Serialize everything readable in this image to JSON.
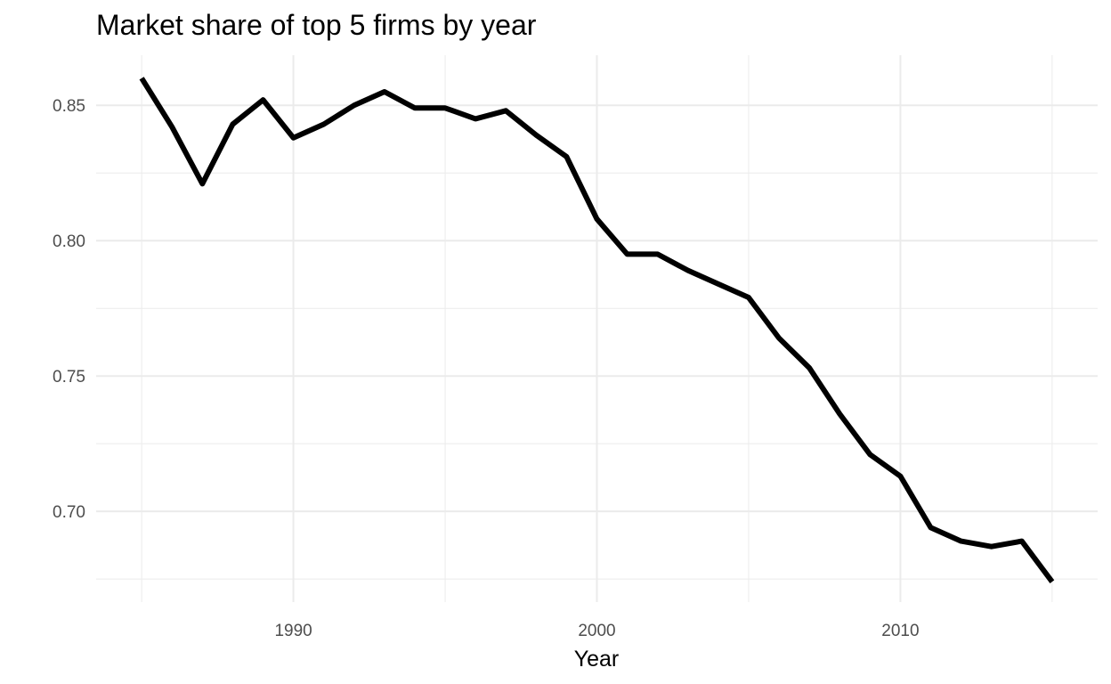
{
  "chart_data": {
    "type": "line",
    "title": "Market share of top 5 firms by year",
    "xlabel": "Year",
    "ylabel": "",
    "x": [
      1985,
      1986,
      1987,
      1988,
      1989,
      1990,
      1991,
      1992,
      1993,
      1994,
      1995,
      1996,
      1997,
      1998,
      1999,
      2000,
      2001,
      2002,
      2003,
      2004,
      2005,
      2006,
      2007,
      2008,
      2009,
      2010,
      2011,
      2012,
      2013,
      2014,
      2015
    ],
    "series": [
      {
        "values": [
          0.86,
          0.842,
          0.821,
          0.843,
          0.852,
          0.838,
          0.843,
          0.85,
          0.855,
          0.849,
          0.849,
          0.845,
          0.848,
          0.839,
          0.831,
          0.808,
          0.795,
          0.795,
          0.789,
          0.784,
          0.779,
          0.764,
          0.753,
          0.736,
          0.721,
          0.713,
          0.694,
          0.689,
          0.687,
          0.689,
          0.674
        ]
      }
    ],
    "x_ticks": [
      "1990",
      "2000",
      "2010"
    ],
    "y_ticks": [
      "0.70",
      "0.75",
      "0.80",
      "0.85"
    ],
    "xlim": [
      1983.5,
      2016.5
    ],
    "ylim": [
      0.6665,
      0.8685
    ],
    "grid": true,
    "line_color": "#000000",
    "grid_color": "#ebebeb"
  }
}
